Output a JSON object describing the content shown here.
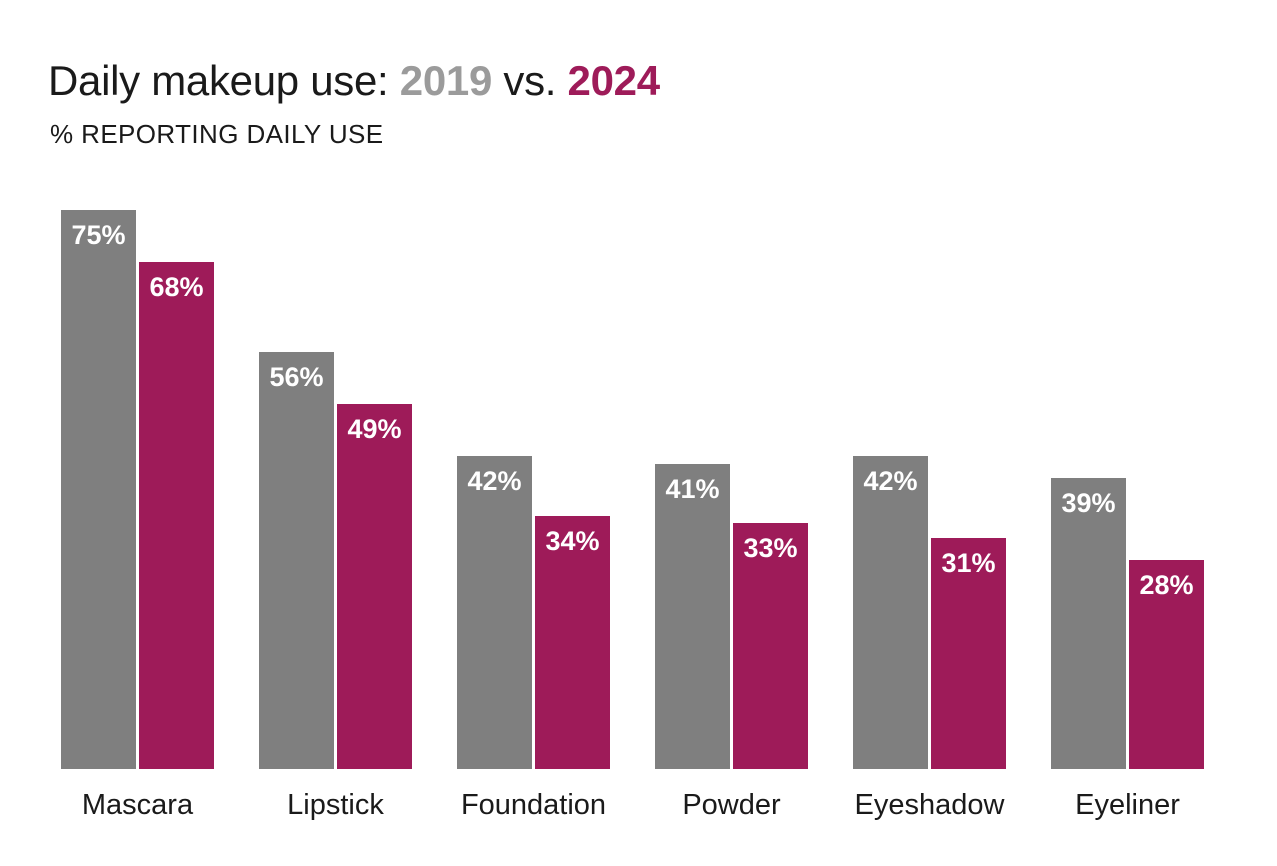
{
  "page": {
    "background": "#FFFFFF"
  },
  "header": {
    "title_prefix": "Daily makeup use:",
    "title_year_2019": "2019",
    "title_vs": "vs.",
    "title_year_2024": "2024",
    "subtitle": "% REPORTING DAILY USE"
  },
  "colors": {
    "series_2019_bar": "#7F7F7F",
    "series_2024_bar": "#9E1B59",
    "title_year_2019": "#9B9B9B",
    "title_year_2024": "#9E1B59",
    "text": "#1A1A1A",
    "bar_value_label": "#FFFFFF"
  },
  "chart_data": {
    "type": "bar",
    "title": "Daily makeup use: 2019 vs. 2024",
    "subtitle": "% REPORTING DAILY USE",
    "categories": [
      "Mascara",
      "Lipstick",
      "Foundation",
      "Powder",
      "Eyeshadow",
      "Eyeliner"
    ],
    "series": [
      {
        "name": "2019",
        "color_key": "series_2019_bar",
        "values": [
          75,
          56,
          42,
          41,
          42,
          39
        ]
      },
      {
        "name": "2024",
        "color_key": "series_2024_bar",
        "values": [
          68,
          49,
          34,
          33,
          31,
          28
        ]
      }
    ],
    "value_suffix": "%",
    "ylim": [
      0,
      100
    ],
    "grid": false,
    "axis_lines": false,
    "legend_position": "in-title",
    "bar_labels": "inside-top-centered"
  }
}
